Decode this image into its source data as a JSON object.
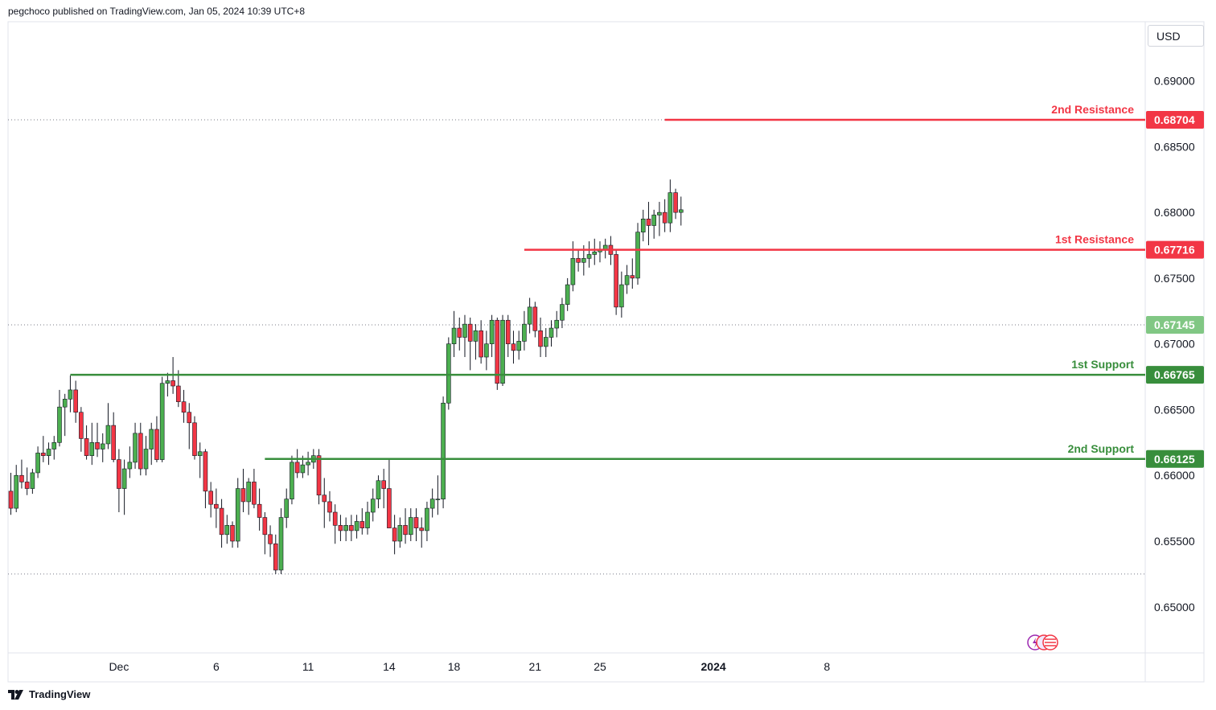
{
  "header": {
    "text": "pegchoco published on TradingView.com, Jan 05, 2024 10:39 UTC+8"
  },
  "footer": {
    "brand": "TradingView"
  },
  "currency": "USD",
  "colors": {
    "up": "#4caf50",
    "down": "#f23645",
    "resistance": "#f23645",
    "support": "#388e3c",
    "last": "#81c784",
    "grid": "#e0e3eb"
  },
  "chart_data": {
    "type": "candlestick",
    "y_axis": {
      "ticks": [
        "0.65000",
        "0.65500",
        "0.66000",
        "0.66500",
        "0.67000",
        "0.67500",
        "0.68000",
        "0.68500",
        "0.69000"
      ],
      "range": [
        0.6465,
        0.6945
      ]
    },
    "x_axis": {
      "ticks": [
        {
          "label": "Dec",
          "index": 20
        },
        {
          "label": "6",
          "index": 38
        },
        {
          "label": "11",
          "index": 55
        },
        {
          "label": "14",
          "index": 70
        },
        {
          "label": "18",
          "index": 82
        },
        {
          "label": "21",
          "index": 97
        },
        {
          "label": "25",
          "index": 109
        },
        {
          "label": "2024",
          "index": 130
        },
        {
          "label": "8",
          "index": 151
        }
      ]
    },
    "levels": [
      {
        "name": "2nd Resistance",
        "value": "0.68704",
        "kind": "resistance",
        "start_index": 121
      },
      {
        "name": "1st Resistance",
        "value": "0.67716",
        "kind": "resistance",
        "start_index": 95
      },
      {
        "name": "1st Support",
        "value": "0.66765",
        "kind": "support",
        "start_index": 11
      },
      {
        "name": "2nd Support",
        "value": "0.66125",
        "kind": "support",
        "start_index": 47
      }
    ],
    "last_price": "0.67145",
    "candles": [
      [
        0.6588,
        0.6602,
        0.657,
        0.6575
      ],
      [
        0.6575,
        0.6608,
        0.6572,
        0.66
      ],
      [
        0.66,
        0.6612,
        0.659,
        0.6595
      ],
      [
        0.6595,
        0.6606,
        0.6585,
        0.659
      ],
      [
        0.659,
        0.6605,
        0.6586,
        0.6602
      ],
      [
        0.6602,
        0.6622,
        0.6598,
        0.6617
      ],
      [
        0.6617,
        0.663,
        0.661,
        0.6615
      ],
      [
        0.6615,
        0.6625,
        0.6608,
        0.662
      ],
      [
        0.662,
        0.663,
        0.6612,
        0.6625
      ],
      [
        0.6625,
        0.6665,
        0.6622,
        0.6652
      ],
      [
        0.6652,
        0.6662,
        0.663,
        0.6658
      ],
      [
        0.6658,
        0.6676,
        0.6648,
        0.6665
      ],
      [
        0.6665,
        0.6672,
        0.664,
        0.6648
      ],
      [
        0.6648,
        0.6652,
        0.6618,
        0.6628
      ],
      [
        0.6628,
        0.6638,
        0.6612,
        0.6615
      ],
      [
        0.6615,
        0.664,
        0.6608,
        0.6625
      ],
      [
        0.6625,
        0.664,
        0.6614,
        0.662
      ],
      [
        0.662,
        0.6632,
        0.661,
        0.6624
      ],
      [
        0.6624,
        0.6655,
        0.662,
        0.6638
      ],
      [
        0.6638,
        0.6648,
        0.661,
        0.6612
      ],
      [
        0.6612,
        0.662,
        0.6572,
        0.659
      ],
      [
        0.659,
        0.6612,
        0.657,
        0.6605
      ],
      [
        0.6605,
        0.6622,
        0.6598,
        0.661
      ],
      [
        0.661,
        0.664,
        0.6605,
        0.6632
      ],
      [
        0.6632,
        0.664,
        0.66,
        0.6605
      ],
      [
        0.6605,
        0.663,
        0.66,
        0.662
      ],
      [
        0.662,
        0.664,
        0.6608,
        0.6635
      ],
      [
        0.6635,
        0.6645,
        0.661,
        0.6612
      ],
      [
        0.6612,
        0.6675,
        0.661,
        0.667
      ],
      [
        0.667,
        0.6678,
        0.666,
        0.6672
      ],
      [
        0.6672,
        0.669,
        0.6662,
        0.6668
      ],
      [
        0.6668,
        0.668,
        0.6652,
        0.6656
      ],
      [
        0.6656,
        0.6665,
        0.664,
        0.6648
      ],
      [
        0.6648,
        0.6655,
        0.662,
        0.664
      ],
      [
        0.664,
        0.6645,
        0.6612,
        0.6615
      ],
      [
        0.6615,
        0.6625,
        0.6598,
        0.6618
      ],
      [
        0.6618,
        0.662,
        0.6575,
        0.6588
      ],
      [
        0.6588,
        0.6595,
        0.6568,
        0.6578
      ],
      [
        0.6578,
        0.659,
        0.656,
        0.6575
      ],
      [
        0.6575,
        0.6582,
        0.6545,
        0.6555
      ],
      [
        0.6555,
        0.657,
        0.6548,
        0.6562
      ],
      [
        0.6562,
        0.6565,
        0.6545,
        0.655
      ],
      [
        0.655,
        0.6598,
        0.6545,
        0.659
      ],
      [
        0.659,
        0.6605,
        0.6572,
        0.658
      ],
      [
        0.658,
        0.6598,
        0.657,
        0.6595
      ],
      [
        0.6595,
        0.6605,
        0.6575,
        0.6578
      ],
      [
        0.6578,
        0.659,
        0.6558,
        0.6568
      ],
      [
        0.6568,
        0.6572,
        0.654,
        0.6555
      ],
      [
        0.6555,
        0.6562,
        0.6538,
        0.6548
      ],
      [
        0.6548,
        0.6555,
        0.6525,
        0.6528
      ],
      [
        0.6528,
        0.6575,
        0.6525,
        0.6568
      ],
      [
        0.6568,
        0.659,
        0.656,
        0.6582
      ],
      [
        0.6582,
        0.6615,
        0.6578,
        0.661
      ],
      [
        0.661,
        0.662,
        0.6598,
        0.6602
      ],
      [
        0.6602,
        0.6615,
        0.6598,
        0.6608
      ],
      [
        0.6608,
        0.6618,
        0.66,
        0.661
      ],
      [
        0.661,
        0.662,
        0.6605,
        0.6615
      ],
      [
        0.6615,
        0.662,
        0.6578,
        0.6585
      ],
      [
        0.6585,
        0.6598,
        0.656,
        0.658
      ],
      [
        0.658,
        0.6588,
        0.6565,
        0.6572
      ],
      [
        0.6572,
        0.6578,
        0.6548,
        0.6562
      ],
      [
        0.6562,
        0.657,
        0.655,
        0.6558
      ],
      [
        0.6558,
        0.6568,
        0.655,
        0.6562
      ],
      [
        0.6562,
        0.657,
        0.655,
        0.6558
      ],
      [
        0.6558,
        0.657,
        0.6552,
        0.6565
      ],
      [
        0.6565,
        0.6575,
        0.6555,
        0.656
      ],
      [
        0.656,
        0.658,
        0.6555,
        0.6572
      ],
      [
        0.6572,
        0.659,
        0.6565,
        0.6582
      ],
      [
        0.6582,
        0.66,
        0.6575,
        0.6596
      ],
      [
        0.6596,
        0.6605,
        0.6575,
        0.659
      ],
      [
        0.659,
        0.6612,
        0.656,
        0.656
      ],
      [
        0.656,
        0.657,
        0.654,
        0.655
      ],
      [
        0.655,
        0.6568,
        0.6545,
        0.6562
      ],
      [
        0.6562,
        0.6575,
        0.6548,
        0.6555
      ],
      [
        0.6555,
        0.6575,
        0.655,
        0.6568
      ],
      [
        0.6568,
        0.6575,
        0.655,
        0.656
      ],
      [
        0.656,
        0.6568,
        0.6545,
        0.6558
      ],
      [
        0.6558,
        0.658,
        0.655,
        0.6575
      ],
      [
        0.6575,
        0.659,
        0.6568,
        0.6582
      ],
      [
        0.6582,
        0.66,
        0.657,
        0.6582
      ],
      [
        0.6582,
        0.666,
        0.6575,
        0.6655
      ],
      [
        0.6655,
        0.6705,
        0.665,
        0.67
      ],
      [
        0.67,
        0.6725,
        0.669,
        0.6712
      ],
      [
        0.6712,
        0.672,
        0.6695,
        0.6705
      ],
      [
        0.6705,
        0.6722,
        0.669,
        0.6715
      ],
      [
        0.6715,
        0.672,
        0.668,
        0.6702
      ],
      [
        0.6702,
        0.6715,
        0.6688,
        0.671
      ],
      [
        0.671,
        0.6718,
        0.6685,
        0.669
      ],
      [
        0.669,
        0.671,
        0.668,
        0.67
      ],
      [
        0.67,
        0.6722,
        0.669,
        0.6718
      ],
      [
        0.6718,
        0.672,
        0.6665,
        0.667
      ],
      [
        0.667,
        0.6722,
        0.6668,
        0.6718
      ],
      [
        0.6718,
        0.6722,
        0.669,
        0.67
      ],
      [
        0.67,
        0.671,
        0.6685,
        0.6695
      ],
      [
        0.6695,
        0.671,
        0.6688,
        0.6702
      ],
      [
        0.6702,
        0.6725,
        0.6695,
        0.6715
      ],
      [
        0.6715,
        0.6735,
        0.6708,
        0.6728
      ],
      [
        0.6728,
        0.6732,
        0.6705,
        0.671
      ],
      [
        0.671,
        0.672,
        0.669,
        0.6698
      ],
      [
        0.6698,
        0.6712,
        0.669,
        0.6705
      ],
      [
        0.6705,
        0.6718,
        0.6698,
        0.6712
      ],
      [
        0.6712,
        0.6725,
        0.6705,
        0.6718
      ],
      [
        0.6718,
        0.6735,
        0.6712,
        0.673
      ],
      [
        0.673,
        0.675,
        0.6725,
        0.6745
      ],
      [
        0.6745,
        0.6778,
        0.674,
        0.6765
      ],
      [
        0.6765,
        0.6772,
        0.6755,
        0.6762
      ],
      [
        0.6762,
        0.6775,
        0.6752,
        0.6765
      ],
      [
        0.6765,
        0.6778,
        0.6758,
        0.6768
      ],
      [
        0.6768,
        0.678,
        0.676,
        0.677
      ],
      [
        0.677,
        0.6778,
        0.6762,
        0.6772
      ],
      [
        0.6772,
        0.678,
        0.6765,
        0.6775
      ],
      [
        0.6775,
        0.6782,
        0.676,
        0.6768
      ],
      [
        0.6768,
        0.6772,
        0.6722,
        0.6728
      ],
      [
        0.6728,
        0.6755,
        0.672,
        0.6745
      ],
      [
        0.6745,
        0.676,
        0.6738,
        0.6752
      ],
      [
        0.6752,
        0.6765,
        0.6742,
        0.675
      ],
      [
        0.675,
        0.6792,
        0.6745,
        0.6785
      ],
      [
        0.6785,
        0.6802,
        0.6778,
        0.6795
      ],
      [
        0.6795,
        0.6808,
        0.6775,
        0.679
      ],
      [
        0.679,
        0.6802,
        0.678,
        0.6798
      ],
      [
        0.6798,
        0.6808,
        0.6782,
        0.68
      ],
      [
        0.68,
        0.681,
        0.6785,
        0.6792
      ],
      [
        0.6792,
        0.6825,
        0.6785,
        0.6815
      ],
      [
        0.6815,
        0.6818,
        0.6795,
        0.68
      ],
      [
        0.68,
        0.6812,
        0.679,
        0.6802
      ]
    ]
  }
}
